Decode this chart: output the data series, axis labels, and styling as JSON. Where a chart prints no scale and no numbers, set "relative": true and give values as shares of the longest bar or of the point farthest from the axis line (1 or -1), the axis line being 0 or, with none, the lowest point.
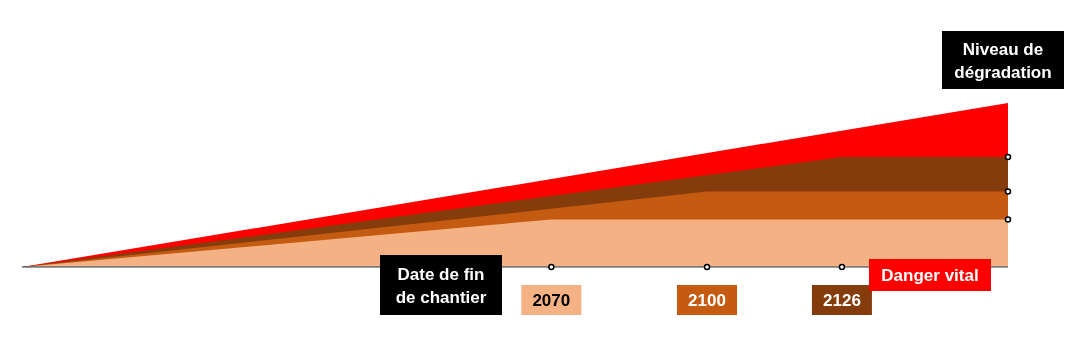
{
  "chart_data": {
    "type": "area",
    "relative": true,
    "xlabel": "Date de fin de chantier",
    "ylabel": "Niveau de dégradation",
    "annotations": [
      "Danger vital"
    ],
    "xlim": [
      1968,
      2158
    ],
    "xticks": [
      2070,
      2100,
      2126
    ],
    "grid": false,
    "series": [
      {
        "color": "#ff0000",
        "x": [
          1968,
          2158
        ],
        "values": [
          0,
          1
        ]
      },
      {
        "color": "#843c0c",
        "x": [
          1968,
          2126,
          2158
        ],
        "values": [
          0,
          0.67,
          0.67
        ]
      },
      {
        "color": "#c55a11",
        "x": [
          1968,
          2100,
          2158
        ],
        "values": [
          0,
          0.46,
          0.46
        ]
      },
      {
        "color": "#f4b183",
        "x": [
          1968,
          2070,
          2158
        ],
        "values": [
          0,
          0.29,
          0.29
        ]
      },
      {
        "type": "scatter",
        "marker": "circle",
        "color": "#000000",
        "x": [
          2070,
          2100,
          2126,
          2158,
          2158,
          2158
        ],
        "values": [
          0,
          0,
          0,
          0.67,
          0.46,
          0.29
        ]
      }
    ]
  }
}
